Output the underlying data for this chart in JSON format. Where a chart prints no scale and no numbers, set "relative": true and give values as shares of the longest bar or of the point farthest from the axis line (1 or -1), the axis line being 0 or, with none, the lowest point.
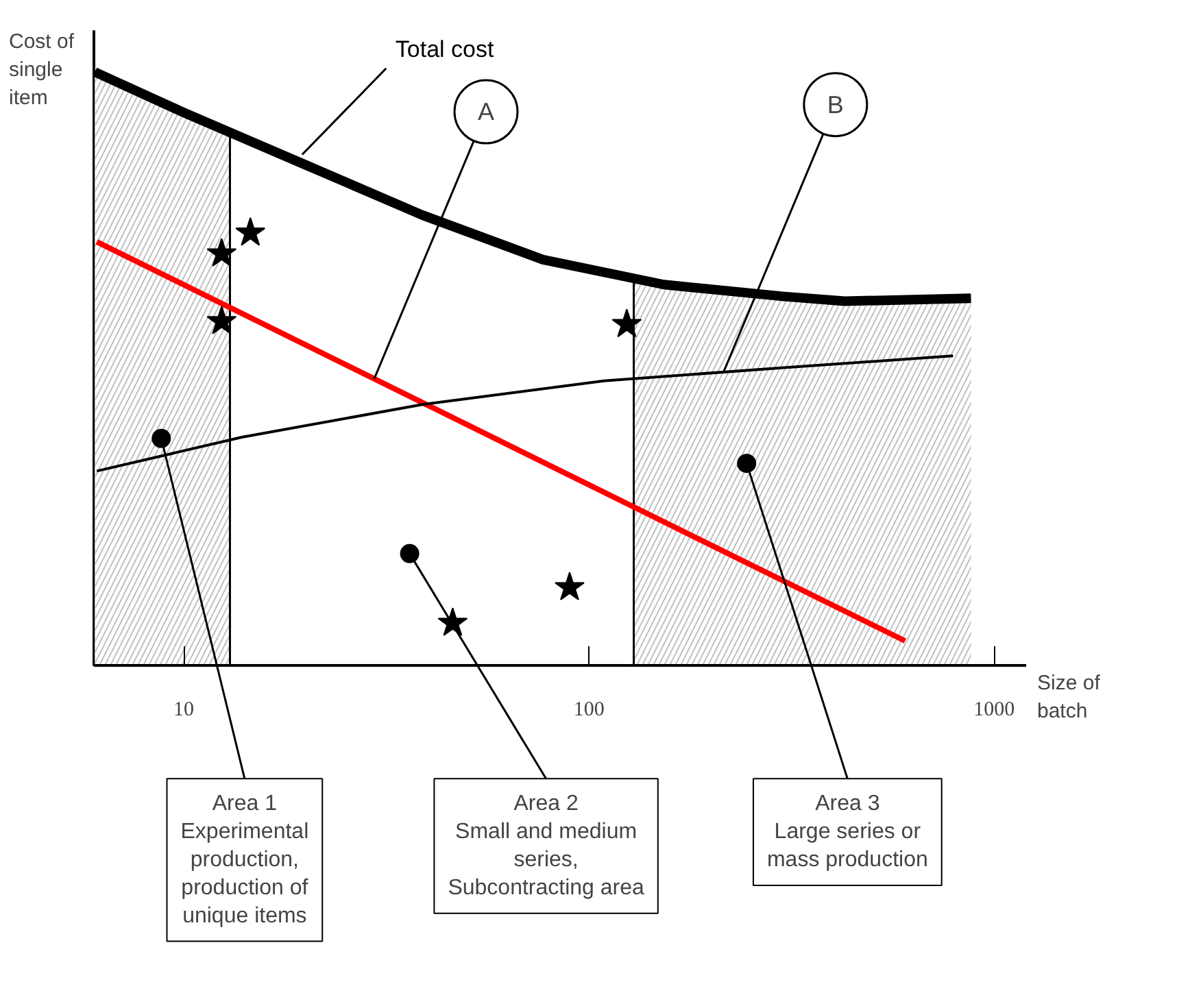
{
  "chart_data": {
    "type": "line",
    "relative": true,
    "log": "x",
    "xlim": [
      6,
      1200
    ],
    "xticks": [
      10,
      100,
      1000
    ],
    "xlabel": "Size of batch",
    "ylabel": "Cost of single item",
    "grid": false,
    "series": [
      {
        "name": "Total cost",
        "color": "#000000",
        "x": [
          6.03,
          9.9,
          19.6,
          38.8,
          77,
          153,
          303,
          428,
          877
        ],
        "values": [
          1.0,
          0.933,
          0.846,
          0.759,
          0.684,
          0.642,
          0.622,
          0.614,
          0.619
        ]
      },
      {
        "color": "#ff0000",
        "x": [
          6.1,
          603
        ],
        "values": [
          0.714,
          0.042
        ]
      },
      {
        "color": "#000000",
        "x": [
          6.1,
          13.9,
          38.8,
          109,
          303,
          792
        ],
        "values": [
          0.328,
          0.385,
          0.44,
          0.48,
          0.502,
          0.522
        ]
      },
      {
        "type": "scatter",
        "marker": "star",
        "color": "#000000",
        "x": [
          14.6,
          12.4,
          12.4,
          46.1,
          89.6,
          124
        ],
        "values": [
          0.729,
          0.694,
          0.58,
          0.072,
          0.132,
          0.575
        ]
      },
      {
        "type": "scatter",
        "marker": "circle",
        "color": "#000000",
        "x": [
          8.8,
          36.1,
          245
        ],
        "values": [
          0.383,
          0.189,
          0.341
        ]
      }
    ],
    "bands": [
      {
        "axis": "x",
        "from": 6.03,
        "to": 13.0,
        "color": "#c0c0c0"
      },
      {
        "axis": "x",
        "from": 129,
        "to": 877,
        "color": "#c0c0c0"
      }
    ],
    "ref_lines": [
      {
        "axis": "x",
        "value": 13.0,
        "color": "#000000"
      },
      {
        "axis": "x",
        "value": 129,
        "color": "#000000"
      }
    ],
    "annotations": [
      {
        "text": "A",
        "x": 29.5,
        "y": 0.483
      },
      {
        "text": "B",
        "x": 215,
        "y": 0.495
      },
      {
        "text": "Area 1\nExperimental\nproduction,\nproduction of\nunique items",
        "x": 8.8,
        "y": 0.383
      },
      {
        "text": "Area 2\nSmall and medium\nseries,\nSubcontracting area",
        "x": 36.1,
        "y": 0.189
      },
      {
        "text": "Area 3\nLarge series or\nmass production",
        "x": 245,
        "y": 0.341
      }
    ]
  }
}
